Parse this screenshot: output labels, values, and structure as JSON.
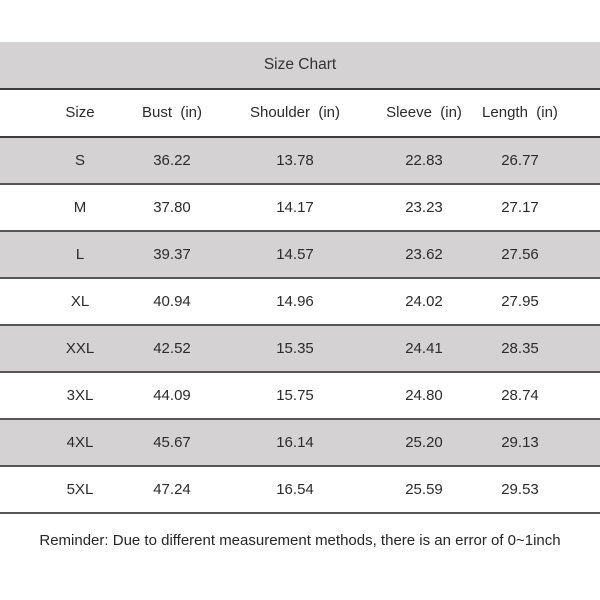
{
  "chart_data": {
    "type": "table",
    "title": "Size Chart",
    "columns": [
      "Size",
      "Bust  (in)",
      "Shoulder  (in)",
      "Sleeve  (in)",
      "Length  (in)"
    ],
    "rows": [
      [
        "S",
        "36.22",
        "13.78",
        "22.83",
        "26.77"
      ],
      [
        "M",
        "37.80",
        "14.17",
        "23.23",
        "27.17"
      ],
      [
        "L",
        "39.37",
        "14.57",
        "23.62",
        "27.56"
      ],
      [
        "XL",
        "40.94",
        "14.96",
        "24.02",
        "27.95"
      ],
      [
        "XXL",
        "42.52",
        "15.35",
        "24.41",
        "28.35"
      ],
      [
        "3XL",
        "44.09",
        "15.75",
        "24.80",
        "28.74"
      ],
      [
        "4XL",
        "45.67",
        "16.14",
        "25.20",
        "29.13"
      ],
      [
        "5XL",
        "47.24",
        "16.54",
        "25.59",
        "29.53"
      ]
    ],
    "footnote": "Reminder: Due to different measurement methods, there is an error of 0~1inch",
    "layout_hints": {
      "alternating_rows_start": "gray",
      "grid": "horizontal-lines-only"
    }
  },
  "colors": {
    "background": "#ffffff",
    "band_gray": "#d4d2d2",
    "alt_row_gray": "#d4d2d2",
    "header_border_dark": "#3d3d3d",
    "row_border": "#565656",
    "text": "#2b2b2b"
  }
}
